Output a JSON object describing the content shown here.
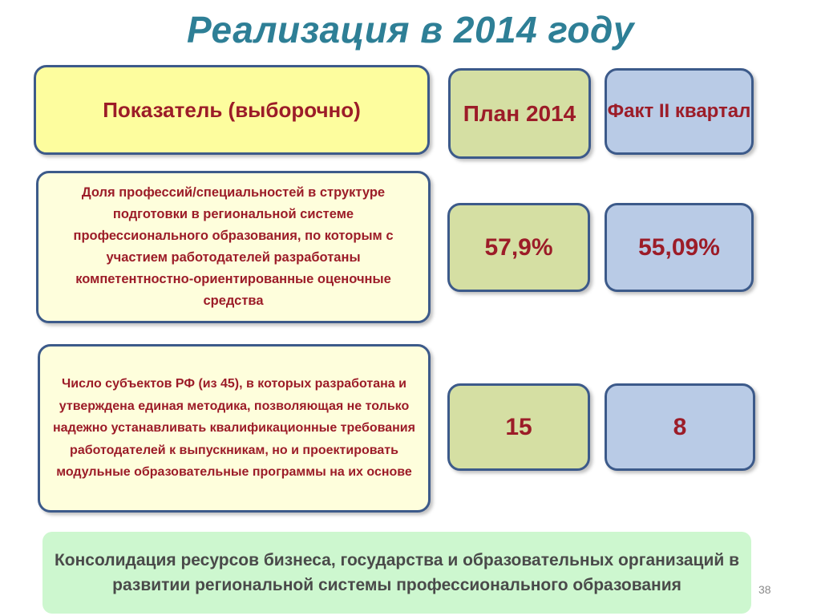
{
  "title": "Реализация в 2014 году",
  "headers": {
    "indicator": "Показатель (выборочно)",
    "plan": "План 2014",
    "fact": "Факт II квартал"
  },
  "rows": [
    {
      "indicator": "Доля профессий/специальностей в структуре подготовки в региональной системе профессионального образования, по которым с участием работодателей разработаны компетентностно-ориентированные оценочные средства",
      "plan": "57,9%",
      "fact": "55,09%"
    },
    {
      "indicator": "Число субъектов РФ (из 45), в которых разработана и утверждена единая методика, позволяющая не только надежно устанавливать квалификационные требования работодателей к выпускникам, но и проектировать модульные образовательные программы на их основе",
      "plan": "15",
      "fact": "8"
    }
  ],
  "footer": "Консолидация ресурсов бизнеса, государства и образовательных организаций в развитии региональной системы профессионального образования",
  "page_number": "38",
  "colors": {
    "title": "#2e7f96",
    "accent_text": "#9c1c28",
    "border": "#3c5a8a",
    "header_yellow": "#fdfd9e",
    "indicator_yellow": "#fefedc",
    "plan_green": "#d5dfa3",
    "fact_blue": "#b9cbe6",
    "footer_green": "#cdf7cf"
  }
}
